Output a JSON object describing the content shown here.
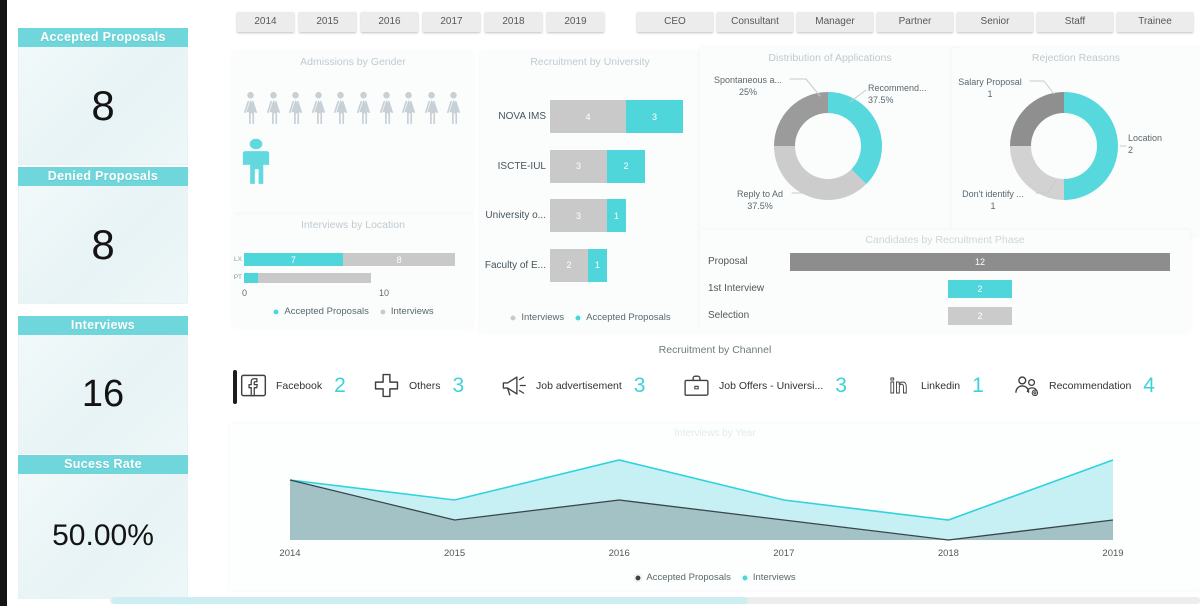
{
  "colors": {
    "accent": "#4fd6da",
    "accent_stroke": "#2fd3de",
    "gray_bar": "#c9c9c9",
    "dark_line": "#3a454b",
    "funnel_gray": "#8d8d8d",
    "header_teal": "#6fd7db"
  },
  "sidebar": {
    "cards": [
      {
        "title": "Accepted Proposals",
        "value": "8"
      },
      {
        "title": "Denied Proposals",
        "value": "8"
      },
      {
        "title": "Interviews",
        "value": "16"
      },
      {
        "title": "Sucess Rate",
        "value": "50.00%"
      }
    ]
  },
  "filters": {
    "years": [
      "2014",
      "2015",
      "2016",
      "2017",
      "2018",
      "2019"
    ],
    "roles": [
      "CEO",
      "Consultant",
      "Manager",
      "Partner",
      "Senior",
      "Staff",
      "Trainee"
    ]
  },
  "gender": {
    "title": "Admissions by Gender",
    "female_count": 10,
    "male_count": 1
  },
  "channels": {
    "title": "Recruitment by Channel",
    "items": [
      {
        "icon": "facebook-icon",
        "label": "Facebook",
        "value": "2"
      },
      {
        "icon": "plus-icon",
        "label": "Others",
        "value": "3"
      },
      {
        "icon": "megaphone-icon",
        "label": "Job advertisement",
        "value": "3"
      },
      {
        "icon": "briefcase-icon",
        "label": "Job Offers - Universi...",
        "value": "3"
      },
      {
        "icon": "linkedin-icon",
        "label": "Linkedin",
        "value": "1"
      },
      {
        "icon": "people-icon",
        "label": "Recommendation",
        "value": "4"
      }
    ]
  },
  "chart_data": [
    {
      "id": "location",
      "type": "bar",
      "orientation": "horizontal",
      "title": "Interviews by Location",
      "categories": [
        "LX",
        "PT"
      ],
      "series": [
        {
          "name": "Accepted Proposals",
          "color_key": "accent",
          "values": [
            7,
            1
          ]
        },
        {
          "name": "Interviews",
          "color_key": "gray_bar",
          "values": [
            8,
            8
          ]
        }
      ],
      "x_ticks": [
        "0",
        "10"
      ],
      "xlim": [
        0,
        16
      ],
      "legend": [
        "Accepted Proposals",
        "Interviews"
      ]
    },
    {
      "id": "university",
      "type": "bar",
      "orientation": "horizontal",
      "title": "Recruitment by University",
      "categories": [
        "NOVA IMS",
        "ISCTE-IUL",
        "University o...",
        "Faculty of E..."
      ],
      "series": [
        {
          "name": "Interviews",
          "color_key": "gray_bar",
          "values": [
            4,
            3,
            3,
            2
          ]
        },
        {
          "name": "Accepted Proposals",
          "color_key": "accent",
          "values": [
            3,
            2,
            1,
            1
          ]
        }
      ],
      "legend": [
        "Interviews",
        "Accepted Proposals"
      ]
    },
    {
      "id": "applications",
      "type": "pie",
      "subtype": "donut",
      "title": "Distribution of Applications",
      "slices": [
        {
          "label": "Recommend...",
          "value_label": "37.5%",
          "value": 37.5,
          "color": "#57d8dd"
        },
        {
          "label": "Reply to Ad",
          "value_label": "37.5%",
          "value": 37.5,
          "color": "#cccccc"
        },
        {
          "label": "Spontaneous a...",
          "value_label": "25%",
          "value": 25,
          "color": "#9b9b9b"
        }
      ]
    },
    {
      "id": "rejections",
      "type": "pie",
      "subtype": "donut",
      "title": "Rejection Reasons",
      "slices": [
        {
          "label": "Location",
          "value_label": "2",
          "value": 50,
          "color": "#57d8dd"
        },
        {
          "label": "Don't identify ...",
          "value_label": "1",
          "value": 25,
          "color": "#d2d2d2"
        },
        {
          "label": "Salary Proposal",
          "value_label": "1",
          "value": 25,
          "color": "#8f8f8f"
        }
      ]
    },
    {
      "id": "funnel",
      "type": "bar",
      "subtype": "funnel",
      "title": "Candidates by Recruitment Phase",
      "categories": [
        "Proposal",
        "1st Interview",
        "Selection"
      ],
      "values": [
        12,
        2,
        2
      ],
      "colors": [
        "#8d8d8d",
        "#4fd6da",
        "#cbcbcb"
      ]
    },
    {
      "id": "yearly",
      "type": "area",
      "title": "Interviews by Year",
      "x": [
        "2014",
        "2015",
        "2016",
        "2017",
        "2018",
        "2019"
      ],
      "series": [
        {
          "name": "Interviews",
          "color_key": "accent",
          "values": [
            3,
            2,
            4,
            2,
            1,
            4
          ]
        },
        {
          "name": "Accepted Proposals",
          "color_key": "dark_line",
          "values": [
            3,
            1,
            2,
            1,
            0,
            1
          ]
        }
      ],
      "ylim": [
        0,
        4
      ],
      "legend": [
        "Accepted Proposals",
        "Interviews"
      ]
    }
  ]
}
